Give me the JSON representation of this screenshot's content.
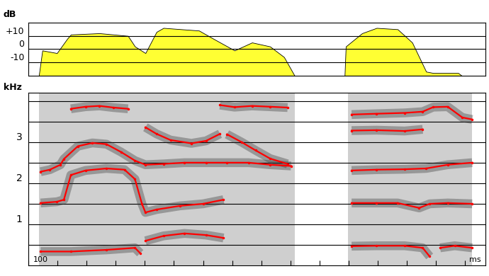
{
  "chart_data": [
    {
      "type": "area",
      "ylabel": "dB",
      "color": "#ffff33",
      "x": [
        18,
        24,
        49,
        67,
        73,
        122,
        171,
        183,
        201,
        220,
        232,
        293,
        317,
        354,
        384,
        415,
        439,
        457,
        500,
        543,
        545,
        573,
        598,
        634,
        659,
        683,
        695,
        738,
        744
      ],
      "values": [
        -20,
        -1,
        -3,
        8,
        11,
        12,
        10,
        2,
        -3,
        13,
        16,
        14,
        8,
        -1,
        5,
        2,
        -6,
        -20,
        null,
        -20,
        2,
        12,
        16,
        15,
        5,
        -17,
        -18,
        -18,
        -20
      ],
      "xlim": [
        0,
        785
      ],
      "ylim": [
        -20,
        20
      ],
      "yticks": [
        {
          "value": -10,
          "label": "-10"
        },
        0,
        {
          "value": 10,
          "label": "+10"
        }
      ],
      "grid": true,
      "tick_labels": "y"
    },
    {
      "type": "line",
      "ylabel": "kHz",
      "xlabel": "ms",
      "annotations": [
        "100"
      ],
      "color": "#ff0000",
      "marker": "point",
      "line_style": "solid",
      "xlim": [
        0,
        785
      ],
      "ylim": [
        0,
        4.2
      ],
      "xticks": [
        0,
        50,
        100,
        150,
        200,
        250,
        300,
        350,
        400,
        450,
        500,
        550,
        600,
        650,
        700,
        750
      ],
      "yticks": [
        1,
        2,
        3
      ],
      "hlines": [
        0.5,
        1,
        1.5,
        2,
        2.5,
        3,
        3.5,
        4
      ],
      "tick_labels": "y",
      "segments": [
        {
          "start": 18,
          "end": 201
        },
        {
          "start": 201,
          "end": 335
        },
        {
          "start": 335,
          "end": 457
        },
        {
          "start": 549,
          "end": 683
        },
        {
          "start": 683,
          "end": 762
        }
      ],
      "series": [
        {
          "x": [
            21,
            73,
            134,
            183,
            192
          ],
          "values": [
            0.34,
            0.34,
            0.38,
            0.43,
            0.3
          ]
        },
        {
          "x": [
            201,
            232,
            268,
            305,
            335
          ],
          "values": [
            0.6,
            0.72,
            0.78,
            0.74,
            0.67
          ]
        },
        {
          "x": [
            555,
            598,
            646,
            677,
            689
          ],
          "values": [
            0.47,
            0.48,
            0.48,
            0.43,
            0.22
          ]
        },
        {
          "x": [
            707,
            732,
            762
          ],
          "values": [
            0.43,
            0.48,
            0.43
          ]
        },
        {
          "x": [
            21,
            49,
            61,
            73,
            98,
            134,
            165,
            183,
            195,
            201,
            220,
            260,
            300,
            335
          ],
          "values": [
            1.52,
            1.55,
            1.6,
            2.2,
            2.31,
            2.36,
            2.33,
            2.1,
            1.5,
            1.29,
            1.36,
            1.45,
            1.5,
            1.6
          ]
        },
        {
          "x": [
            21,
            37,
            55,
            61,
            85,
            110,
            134,
            159,
            183,
            201,
            232,
            268,
            305,
            341,
            378,
            415,
            451
          ],
          "values": [
            2.28,
            2.33,
            2.45,
            2.59,
            2.9,
            2.98,
            2.95,
            2.76,
            2.55,
            2.45,
            2.47,
            2.5,
            2.5,
            2.5,
            2.5,
            2.45,
            2.42
          ]
        },
        {
          "x": [
            73,
            98,
            122,
            146,
            171
          ],
          "values": [
            3.81,
            3.86,
            3.88,
            3.84,
            3.81
          ]
        },
        {
          "x": [
            201,
            220,
            244,
            280,
            305,
            329
          ],
          "values": [
            3.36,
            3.2,
            3.05,
            2.97,
            3.03,
            3.2
          ]
        },
        {
          "x": [
            329,
            354,
            384,
            415,
            445
          ],
          "values": [
            3.9,
            3.85,
            3.88,
            3.86,
            3.84
          ]
        },
        {
          "x": [
            341,
            366,
            390,
            415,
            445
          ],
          "values": [
            3.19,
            3.0,
            2.8,
            2.6,
            2.47
          ]
        },
        {
          "x": [
            555,
            598,
            646,
            677,
            695,
            720,
            745,
            762
          ],
          "values": [
            3.67,
            3.69,
            3.71,
            3.74,
            3.85,
            3.86,
            3.6,
            3.55
          ]
        },
        {
          "x": [
            555,
            598,
            646,
            677
          ],
          "values": [
            3.28,
            3.29,
            3.27,
            3.31
          ]
        },
        {
          "x": [
            555,
            598,
            646,
            683,
            720,
            762
          ],
          "values": [
            2.31,
            2.33,
            2.34,
            2.36,
            2.45,
            2.5
          ]
        },
        {
          "x": [
            555,
            598,
            634,
            671,
            689,
            720,
            762
          ],
          "values": [
            1.52,
            1.52,
            1.52,
            1.4,
            1.5,
            1.52,
            1.5
          ]
        }
      ]
    }
  ]
}
